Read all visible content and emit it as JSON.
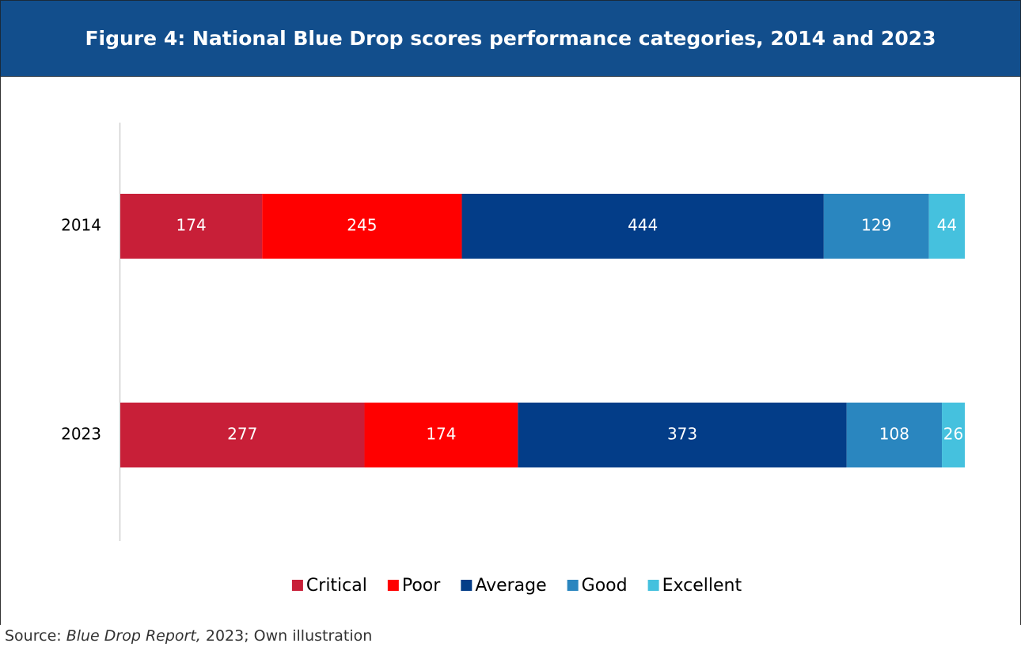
{
  "chart_data": {
    "type": "stacked-bar-100",
    "title": "Figure 4: National Blue Drop scores performance categories, 2014 and 2023",
    "categories": [
      "2014",
      "2023"
    ],
    "series": [
      {
        "name": "Critical",
        "color": "#c81f38",
        "values": [
          174,
          277
        ]
      },
      {
        "name": "Poor",
        "color": "#ff0000",
        "values": [
          245,
          174
        ]
      },
      {
        "name": "Average",
        "color": "#033d88",
        "values": [
          444,
          373
        ]
      },
      {
        "name": "Good",
        "color": "#2a86bf",
        "values": [
          129,
          108
        ]
      },
      {
        "name": "Excellent",
        "color": "#45c1de",
        "values": [
          44,
          26
        ]
      }
    ],
    "legend": "bottom",
    "source": {
      "prefix": "Source: ",
      "italic": "Blue Drop Report,",
      "suffix": " 2023; Own illustration"
    }
  }
}
